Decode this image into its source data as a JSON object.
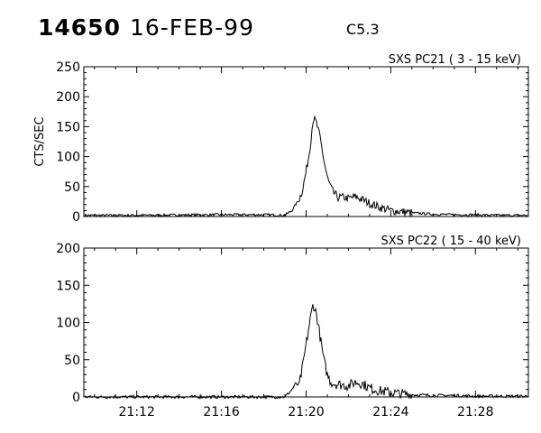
{
  "header": {
    "event_id": "14650",
    "date": "16-FEB-99",
    "flare_class": "C5.3"
  },
  "chart_data": [
    {
      "type": "line",
      "title": "SXS PC21  (  3 - 15 keV)",
      "xlabel": "",
      "ylabel": "CTS/SEC",
      "xlim": [
        "21:09:30",
        "21:30:30"
      ],
      "ylim": [
        0,
        250
      ],
      "y_ticks": [
        "0",
        "50",
        "100",
        "150",
        "200",
        "250"
      ],
      "x_ticks": [],
      "grid": false,
      "series": [
        {
          "x": [
            "21:09:30",
            "21:12:00",
            "21:16:00",
            "21:18:00",
            "21:19:00",
            "21:19:20",
            "21:19:30",
            "21:19:40",
            "21:19:50",
            "21:20:00",
            "21:20:10",
            "21:20:20",
            "21:20:30",
            "21:20:40",
            "21:20:50",
            "21:21:00",
            "21:21:10",
            "21:21:20",
            "21:21:30",
            "21:21:45",
            "21:22:00",
            "21:22:20",
            "21:22:40",
            "21:23:00",
            "21:23:30",
            "21:24:00",
            "21:24:30",
            "21:25:00",
            "21:26:00",
            "21:27:00",
            "21:28:00",
            "21:29:00",
            "21:30:30"
          ],
          "y": [
            2,
            2,
            3,
            3,
            2,
            10,
            20,
            28,
            45,
            75,
            110,
            165,
            155,
            130,
            95,
            65,
            48,
            38,
            32,
            32,
            30,
            33,
            28,
            22,
            15,
            10,
            8,
            6,
            4,
            3,
            3,
            2,
            2
          ]
        }
      ]
    },
    {
      "type": "line",
      "title": "SXS PC22  ( 15 - 40 keV)",
      "xlabel": "",
      "ylabel": "",
      "xlim": [
        "21:09:30",
        "21:30:30"
      ],
      "ylim": [
        0,
        200
      ],
      "y_ticks": [
        "0",
        "50",
        "100",
        "150",
        "200"
      ],
      "x_ticks": [
        "21:12",
        "21:16",
        "21:20",
        "21:24",
        "21:28"
      ],
      "grid": false,
      "series": [
        {
          "x": [
            "21:09:30",
            "21:12:00",
            "21:16:00",
            "21:18:00",
            "21:19:00",
            "21:19:20",
            "21:19:30",
            "21:19:40",
            "21:19:50",
            "21:20:00",
            "21:20:10",
            "21:20:20",
            "21:20:30",
            "21:20:40",
            "21:20:50",
            "21:21:00",
            "21:21:10",
            "21:21:20",
            "21:21:30",
            "21:21:45",
            "21:22:00",
            "21:22:20",
            "21:22:40",
            "21:23:00",
            "21:23:30",
            "21:24:00",
            "21:24:30",
            "21:25:00",
            "21:26:00",
            "21:27:00",
            "21:28:00",
            "21:29:00",
            "21:30:30"
          ],
          "y": [
            0,
            0,
            0,
            0,
            0,
            10,
            18,
            15,
            40,
            70,
            100,
            125,
            110,
            80,
            50,
            30,
            20,
            18,
            17,
            16,
            15,
            20,
            18,
            12,
            8,
            6,
            4,
            3,
            2,
            2,
            1,
            1,
            1
          ]
        }
      ]
    }
  ]
}
